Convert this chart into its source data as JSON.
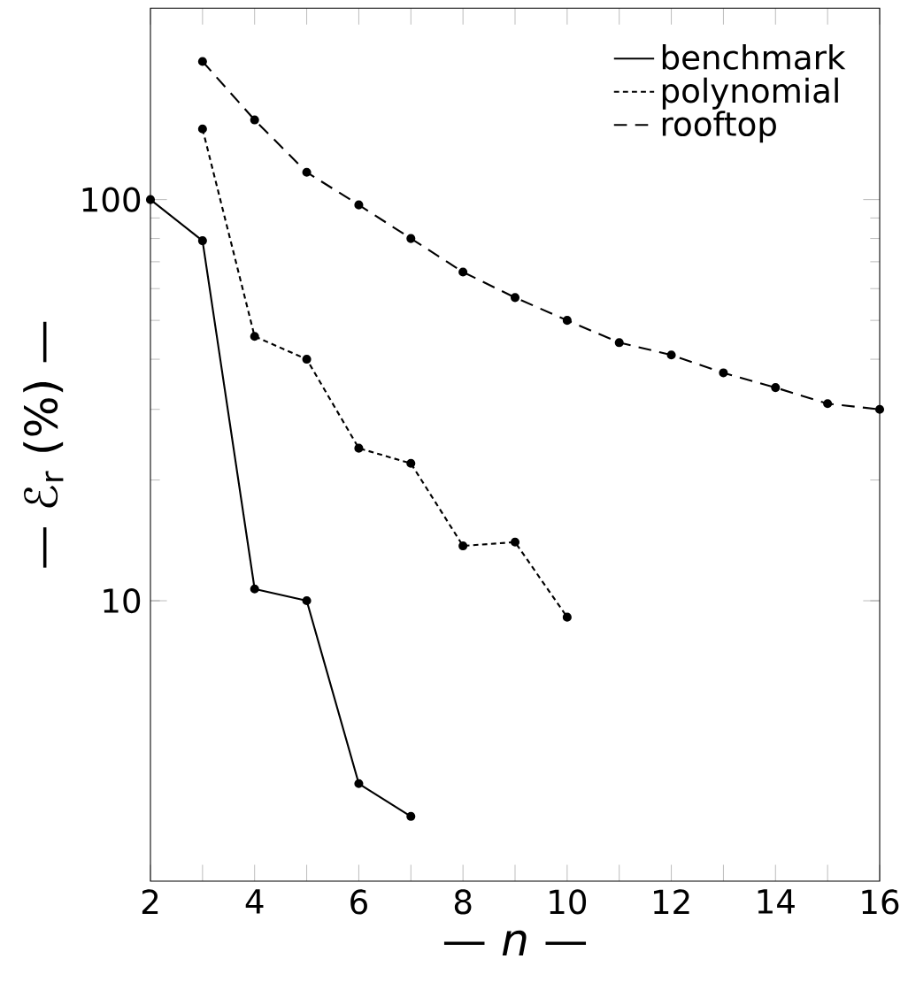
{
  "chart_data": {
    "type": "line",
    "xlabel": "— *n* —",
    "ylabel": "— ℰ$_{r}$ (%) —",
    "log": "y",
    "xlim": [
      2,
      16
    ],
    "ylim": [
      2,
      300
    ],
    "xticks": [
      2,
      {
        "value": 3,
        "label": null
      },
      4,
      {
        "value": 5,
        "label": null
      },
      6,
      {
        "value": 7,
        "label": null
      },
      8,
      {
        "value": 9,
        "label": null
      },
      10,
      {
        "value": 11,
        "label": null
      },
      12,
      {
        "value": 13,
        "label": null
      },
      14,
      {
        "value": 15,
        "label": null
      },
      16
    ],
    "yticks": [
      10,
      100
    ],
    "legend": "top right",
    "marker": "circle",
    "grid": false,
    "series": [
      {
        "name": "benchmark",
        "color": "#000000",
        "line_style": "solid",
        "x": [
          2,
          3,
          4,
          5,
          6,
          7
        ],
        "values": [
          100,
          79,
          10.7,
          10,
          3.5,
          2.9
        ]
      },
      {
        "name": "polynomial",
        "color": "#000000",
        "line_style": "dotted",
        "x": [
          3,
          4,
          5,
          6,
          7,
          8,
          9,
          10
        ],
        "values": [
          150,
          45.6,
          40,
          24,
          22,
          13.7,
          14,
          9.1
        ]
      },
      {
        "name": "rooftop",
        "color": "#000000",
        "line_style": "dashed",
        "x": [
          3,
          4,
          5,
          6,
          7,
          8,
          9,
          10,
          11,
          12,
          13,
          14,
          15,
          16
        ],
        "values": [
          221,
          158,
          117,
          97,
          80,
          66,
          57,
          50,
          44,
          41,
          37,
          34,
          31,
          30
        ]
      }
    ]
  }
}
